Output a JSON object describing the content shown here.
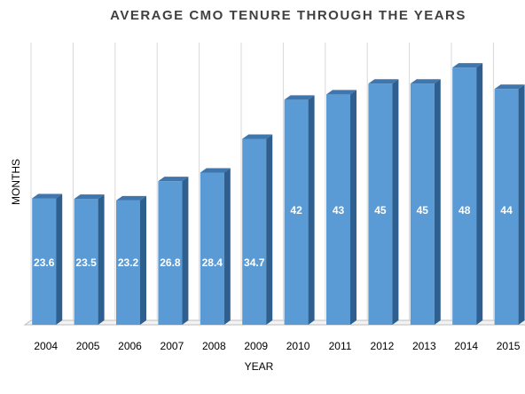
{
  "chart_data": {
    "type": "bar",
    "title": "AVERAGE CMO TENURE THROUGH THE YEARS",
    "xlabel": "YEAR",
    "ylabel": "MONTHS",
    "categories": [
      "2004",
      "2005",
      "2006",
      "2007",
      "2008",
      "2009",
      "2010",
      "2011",
      "2012",
      "2013",
      "2014",
      "2015"
    ],
    "values": [
      23.6,
      23.5,
      23.2,
      26.8,
      28.4,
      34.7,
      42,
      43,
      45,
      45,
      48,
      44
    ],
    "value_labels": [
      "23.6",
      "23.5",
      "23.2",
      "26.8",
      "28.4",
      "34.7",
      "42",
      "43",
      "45",
      "45",
      "48",
      "44"
    ],
    "ylim": [
      0,
      51
    ],
    "grid": "vertical",
    "legend": "none",
    "colors": {
      "bar_front": "#5b9bd5",
      "bar_side": "#2e5f8f",
      "bar_top": "#3f76ad",
      "grid": "#d9d9d9",
      "floor": "#bfbfbf",
      "data_label": "#ffffff",
      "title": "#404040",
      "tick_label": "#000000"
    }
  }
}
